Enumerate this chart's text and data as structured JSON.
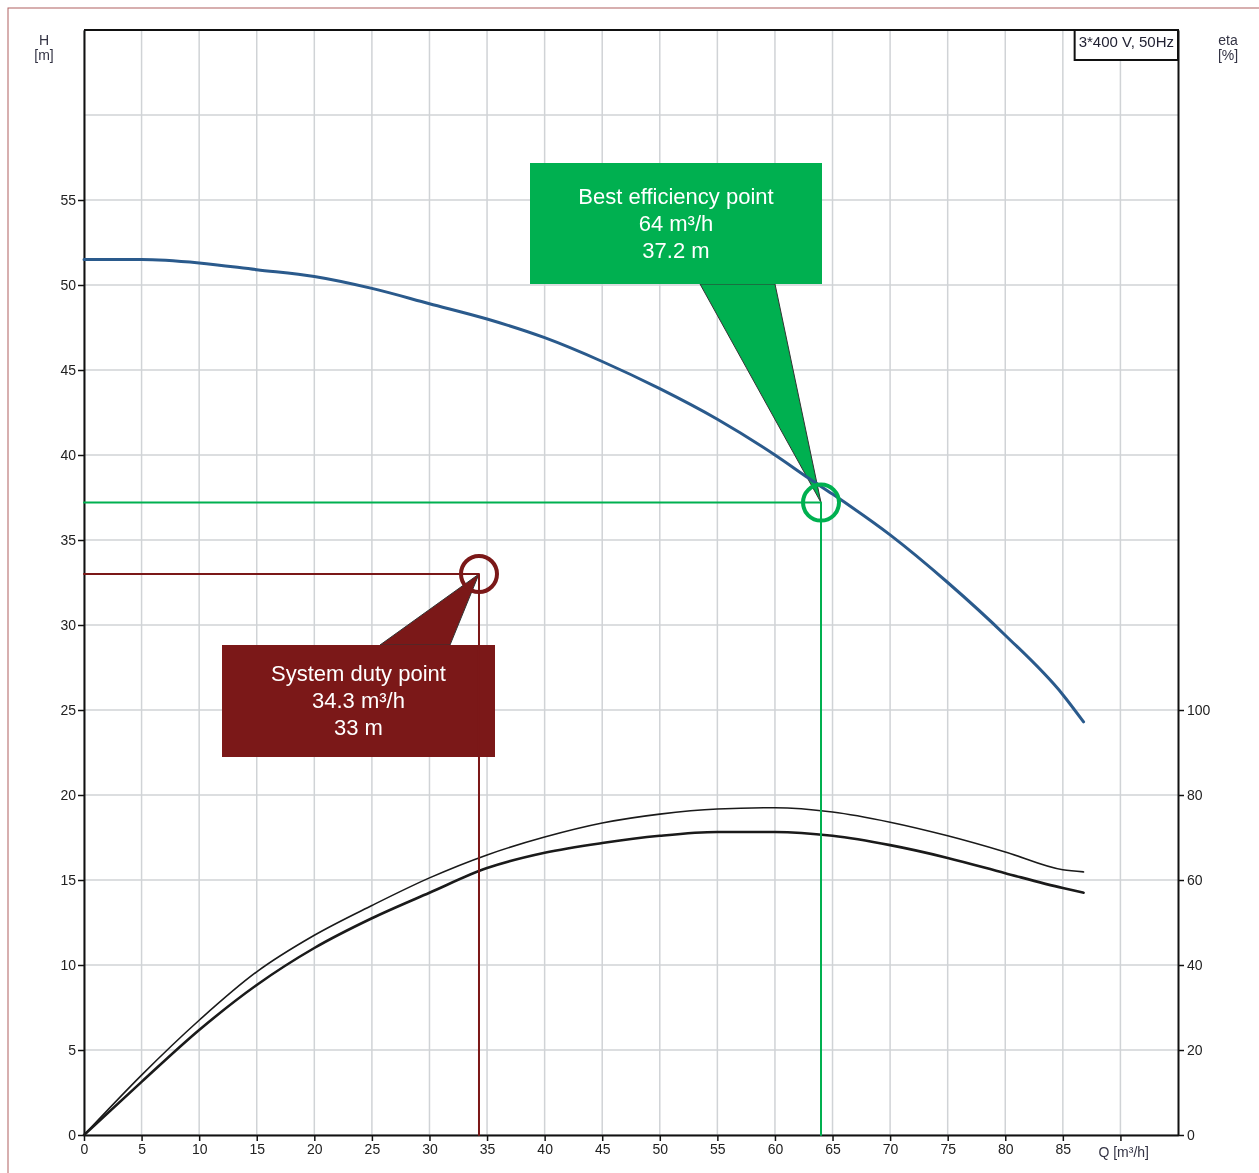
{
  "chart_data": {
    "type": "line",
    "ylabel": "H\n[m]",
    "y2label": "eta\n[%]",
    "xlabel": "Q [m³/h]",
    "xlim": [
      0,
      95
    ],
    "xticks": [
      0,
      5,
      10,
      15,
      20,
      25,
      30,
      35,
      40,
      45,
      50,
      55,
      60,
      65,
      70,
      75,
      80,
      85,
      {
        "value": 90,
        "label": null
      }
    ],
    "ylim": [
      0,
      65
    ],
    "yticks": [
      0,
      5,
      10,
      15,
      20,
      25,
      30,
      35,
      40,
      45,
      50,
      55,
      {
        "value": 60,
        "label": null
      }
    ],
    "y2lim": [
      0,
      260
    ],
    "y2ticks": [
      0,
      20,
      40,
      60,
      80,
      100
    ],
    "grid": true,
    "marker": "none",
    "line_style": "solid",
    "series": [
      {
        "color": "#2a5a8c",
        "x": [
          0,
          5,
          10,
          15,
          20,
          25,
          30,
          35,
          40,
          45,
          50,
          55,
          60,
          63,
          65,
          70,
          75,
          80,
          85,
          86.8
        ],
        "values": [
          51.5,
          51.5,
          51.3,
          50.9,
          50.5,
          49.8,
          48.9,
          48.0,
          46.9,
          45.5,
          43.9,
          42.1,
          40.0,
          38.6,
          37.7,
          35.3,
          32.5,
          29.4,
          25.9,
          24.3
        ]
      },
      {
        "color": "#1a1a1a",
        "axis": "y2",
        "x": [
          0,
          5,
          10,
          15,
          20,
          25,
          30,
          35,
          40,
          45,
          50,
          55,
          60,
          65,
          70,
          75,
          80,
          85,
          86.8
        ],
        "values": [
          0,
          14.1,
          27,
          38.4,
          47,
          54,
          60.5,
          65.9,
          70.1,
          73.4,
          75.5,
          76.7,
          77,
          76,
          73.6,
          70.4,
          66.6,
          62.4,
          61.9
        ]
      },
      {
        "color": "#1a1a1a",
        "axis": "y2",
        "x": [
          0,
          5,
          10,
          15,
          20,
          25,
          30,
          35,
          40,
          45,
          50,
          55,
          60,
          65,
          70,
          75,
          80,
          85,
          86.8
        ],
        "values": [
          0,
          12.5,
          24.7,
          35.3,
          44,
          51,
          57,
          62.8,
          66.4,
          68.7,
          70.4,
          71.3,
          71.3,
          70.4,
          68.2,
          65.2,
          61.6,
          58.1,
          57
        ]
      },
      {
        "color": "#00b050",
        "x": [
          0,
          64,
          64
        ],
        "values": [
          37.2,
          37.2,
          0
        ]
      },
      {
        "color": "#7b1818",
        "x": [
          0,
          34.3,
          34.3
        ],
        "values": [
          33,
          33,
          0
        ]
      },
      {
        "type": "scatter",
        "marker": "circle",
        "color": "#00b050",
        "x": [
          64
        ],
        "values": [
          37.2
        ]
      },
      {
        "type": "scatter",
        "marker": "circle",
        "color": "#7b1818",
        "x": [
          34.3
        ],
        "values": [
          33
        ]
      }
    ],
    "annotations": [
      "Best efficiency point\n64 m³/h\n37.2 m",
      "System duty point\n34.3 m³/h\n33 m",
      "3*400 V, 50Hz"
    ]
  }
}
